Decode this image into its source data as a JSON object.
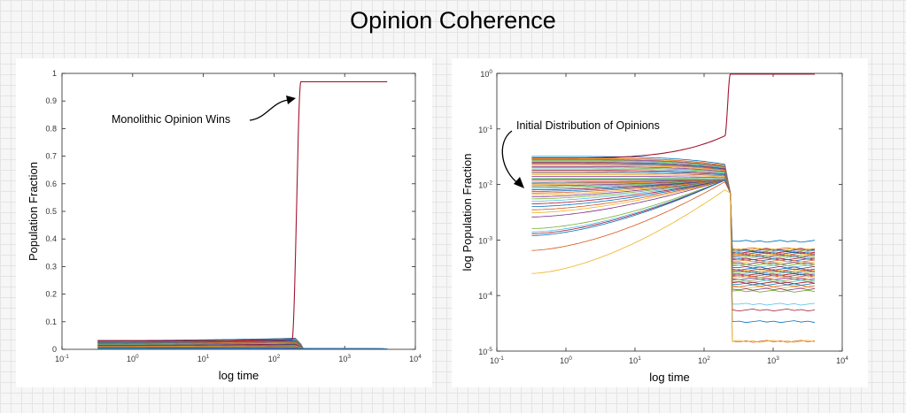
{
  "page": {
    "title": "Opinion Coherence"
  },
  "chart_data": [
    {
      "type": "line",
      "title": "",
      "xlabel": "log time",
      "ylabel": "Population Fraction",
      "xscale": "log",
      "xlim": [
        0.1,
        10000
      ],
      "ylim": [
        0,
        1
      ],
      "x_ticks": [
        {
          "base": "10",
          "exp": "-1"
        },
        {
          "base": "10",
          "exp": "0"
        },
        {
          "base": "10",
          "exp": "1"
        },
        {
          "base": "10",
          "exp": "2"
        },
        {
          "base": "10",
          "exp": "3"
        },
        {
          "base": "10",
          "exp": "4"
        }
      ],
      "y_ticks": [
        "0",
        "0.1",
        "0.2",
        "0.3",
        "0.4",
        "0.5",
        "0.6",
        "0.7",
        "0.8",
        "0.9",
        "1"
      ],
      "annotation": {
        "text": "Monolithic Opinion Wins"
      },
      "t_start": 0.32,
      "t_collapse": 240,
      "t_end": 4000,
      "winner": {
        "name": "winning opinion",
        "start": 0.031,
        "peak": 0.035,
        "final": 0.97,
        "color": "#a2142f"
      },
      "losers_initial": [
        0.032,
        0.03,
        0.029,
        0.028,
        0.027,
        0.026,
        0.025,
        0.024,
        0.022,
        0.02,
        0.019,
        0.018,
        0.016,
        0.015,
        0.013,
        0.011,
        0.01,
        0.008,
        0.006,
        0.004,
        0.003,
        0.0015
      ],
      "series_colors": [
        "#0072bd",
        "#d95319",
        "#edb120",
        "#7e2f8e",
        "#77ac30",
        "#4dbeee",
        "#a2142f"
      ]
    },
    {
      "type": "line",
      "title": "",
      "xlabel": "log time",
      "ylabel": "log Population Fraction",
      "xscale": "log",
      "yscale": "log",
      "xlim": [
        0.1,
        10000
      ],
      "ylim": [
        1e-05,
        1
      ],
      "x_ticks": [
        {
          "base": "10",
          "exp": "-1"
        },
        {
          "base": "10",
          "exp": "0"
        },
        {
          "base": "10",
          "exp": "1"
        },
        {
          "base": "10",
          "exp": "2"
        },
        {
          "base": "10",
          "exp": "3"
        },
        {
          "base": "10",
          "exp": "4"
        }
      ],
      "y_ticks": [
        {
          "base": "10",
          "exp": "-5"
        },
        {
          "base": "10",
          "exp": "-4"
        },
        {
          "base": "10",
          "exp": "-3"
        },
        {
          "base": "10",
          "exp": "-2"
        },
        {
          "base": "10",
          "exp": "-1"
        },
        {
          "base": "10",
          "exp": "0"
        }
      ],
      "annotation": {
        "text": "Initial Distribution of Opinions"
      },
      "t_start": 0.32,
      "t_collapse": 240,
      "t_end": 4000,
      "winner": {
        "name": "winning opinion",
        "start": 0.03,
        "peak": 0.075,
        "final": 0.97,
        "color": "#a2142f"
      },
      "series_initial": [
        0.032,
        0.03,
        0.029,
        0.028,
        0.027,
        0.026,
        0.025,
        0.024,
        0.023,
        0.022,
        0.021,
        0.02,
        0.019,
        0.018,
        0.017,
        0.016,
        0.015,
        0.014,
        0.013,
        0.0125,
        0.012,
        0.011,
        0.0105,
        0.01,
        0.0095,
        0.009,
        0.0085,
        0.008,
        0.0075,
        0.007,
        0.0065,
        0.006,
        0.0055,
        0.005,
        0.0045,
        0.004,
        0.0035,
        0.0031,
        0.0026,
        0.0016,
        0.0014,
        0.0013,
        0.0012,
        0.00065,
        0.00025
      ],
      "series_final": [
        0.00095,
        0.0007,
        0.00068,
        0.00066,
        0.00064,
        0.00062,
        0.0006,
        0.00058,
        0.00056,
        0.00054,
        0.00052,
        0.0005,
        0.00048,
        0.00046,
        0.00044,
        0.00042,
        0.0004,
        0.00038,
        0.00036,
        0.00034,
        0.00032,
        0.0003,
        0.00029,
        0.00028,
        0.00027,
        0.00026,
        0.00025,
        0.00024,
        0.00023,
        0.00022,
        0.00021,
        0.0002,
        0.00019,
        0.00018,
        0.00017,
        0.00016,
        0.00015,
        0.00014,
        0.00013,
        0.00012,
        7e-05,
        5.5e-05,
        3.4e-05,
        1.5e-05,
        1.5e-05
      ],
      "series_colors": [
        "#0072bd",
        "#d95319",
        "#edb120",
        "#7e2f8e",
        "#77ac30",
        "#4dbeee",
        "#a2142f"
      ]
    }
  ]
}
